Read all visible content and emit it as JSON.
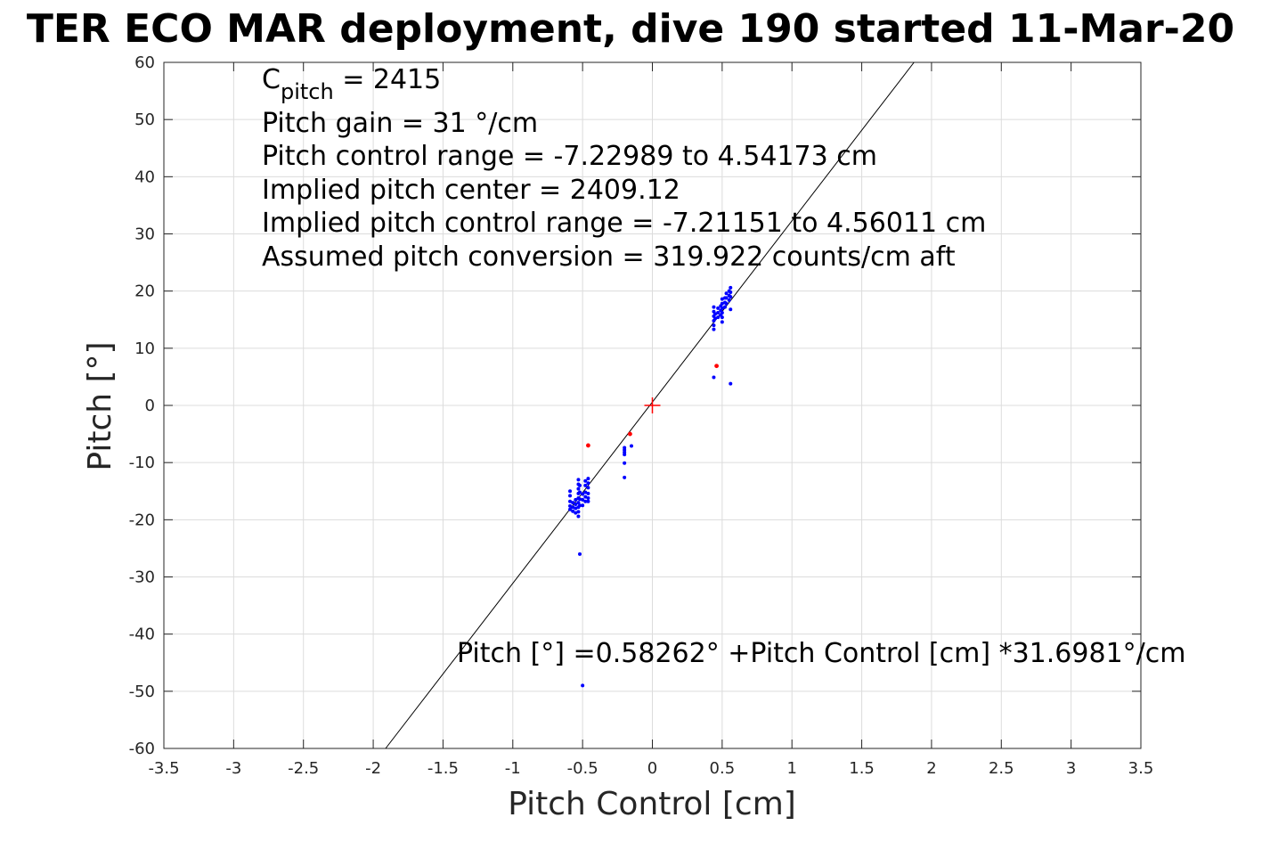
{
  "chart_data": {
    "type": "scatter",
    "title": "TER ECO MAR deployment, dive 190 started 11-Mar-20",
    "xlabel": "Pitch Control [cm]",
    "ylabel": "Pitch [°]",
    "xlim": [
      -3.5,
      3.5
    ],
    "ylim": [
      -60,
      60
    ],
    "xticks": [
      -3.5,
      -3,
      -2.5,
      -2,
      -1.5,
      -1,
      -0.5,
      0,
      0.5,
      1,
      1.5,
      2,
      2.5,
      3,
      3.5
    ],
    "yticks": [
      -60,
      -50,
      -40,
      -30,
      -20,
      -10,
      0,
      10,
      20,
      30,
      40,
      50,
      60
    ],
    "xtick_labels": [
      "-3.5",
      "-3",
      "-2.5",
      "-2",
      "-1.5",
      "-1",
      "-0.5",
      "0",
      "0.5",
      "1",
      "1.5",
      "2",
      "2.5",
      "3",
      "3.5"
    ],
    "ytick_labels": [
      "-60",
      "-50",
      "-40",
      "-30",
      "-20",
      "-10",
      "0",
      "10",
      "20",
      "30",
      "40",
      "50",
      "60"
    ],
    "grid": true,
    "fit_line": {
      "intercept": 0.58262,
      "slope": 31.6981,
      "color": "#000000"
    },
    "center_marker": {
      "x": 0,
      "y": 0,
      "color": "#ff0000"
    },
    "series": [
      {
        "color": "#0000ff",
        "points": [
          [
            -0.59,
            -15.0
          ],
          [
            -0.59,
            -15.8
          ],
          [
            -0.59,
            -16.8
          ],
          [
            -0.59,
            -17.6
          ],
          [
            -0.59,
            -18.2
          ],
          [
            -0.57,
            -17.0
          ],
          [
            -0.57,
            -17.8
          ],
          [
            -0.57,
            -18.5
          ],
          [
            -0.55,
            -16.5
          ],
          [
            -0.55,
            -17.3
          ],
          [
            -0.55,
            -18.0
          ],
          [
            -0.55,
            -18.8
          ],
          [
            -0.53,
            -13.0
          ],
          [
            -0.53,
            -13.8
          ],
          [
            -0.53,
            -14.6
          ],
          [
            -0.53,
            -15.4
          ],
          [
            -0.53,
            -16.2
          ],
          [
            -0.53,
            -17.0
          ],
          [
            -0.53,
            -17.8
          ],
          [
            -0.53,
            -18.6
          ],
          [
            -0.53,
            -19.4
          ],
          [
            -0.52,
            -14.0
          ],
          [
            -0.52,
            -15.2
          ],
          [
            -0.52,
            -16.4
          ],
          [
            -0.52,
            -17.5
          ],
          [
            -0.52,
            -26.0
          ],
          [
            -0.5,
            -15.5
          ],
          [
            -0.5,
            -16.5
          ],
          [
            -0.5,
            -17.5
          ],
          [
            -0.5,
            -49.0
          ],
          [
            -0.48,
            -13.2
          ],
          [
            -0.48,
            -14.0
          ],
          [
            -0.48,
            -15.2
          ],
          [
            -0.48,
            -16.0
          ],
          [
            -0.48,
            -16.8
          ],
          [
            -0.46,
            -12.8
          ],
          [
            -0.46,
            -13.6
          ],
          [
            -0.46,
            -14.4
          ],
          [
            -0.46,
            -15.4
          ],
          [
            -0.46,
            -16.2
          ],
          [
            -0.46,
            -16.8
          ],
          [
            -0.2,
            -7.4
          ],
          [
            -0.2,
            -7.8
          ],
          [
            -0.2,
            -8.2
          ],
          [
            -0.2,
            -8.6
          ],
          [
            -0.2,
            -10.1
          ],
          [
            -0.2,
            -12.6
          ],
          [
            -0.15,
            -7.1
          ],
          [
            0.44,
            17.2
          ],
          [
            0.44,
            16.4
          ],
          [
            0.44,
            15.6
          ],
          [
            0.44,
            14.8
          ],
          [
            0.44,
            14.0
          ],
          [
            0.44,
            13.3
          ],
          [
            0.45,
            16.0
          ],
          [
            0.45,
            15.2
          ],
          [
            0.44,
            4.9
          ],
          [
            0.47,
            17.0
          ],
          [
            0.47,
            16.2
          ],
          [
            0.47,
            15.4
          ],
          [
            0.49,
            17.4
          ],
          [
            0.49,
            16.6
          ],
          [
            0.49,
            15.8
          ],
          [
            0.5,
            18.6
          ],
          [
            0.5,
            17.8
          ],
          [
            0.5,
            17.0
          ],
          [
            0.5,
            16.2
          ],
          [
            0.5,
            15.4
          ],
          [
            0.5,
            14.6
          ],
          [
            0.52,
            18.8
          ],
          [
            0.52,
            18.0
          ],
          [
            0.52,
            17.2
          ],
          [
            0.53,
            19.6
          ],
          [
            0.53,
            18.8
          ],
          [
            0.53,
            17.8
          ],
          [
            0.55,
            20.0
          ],
          [
            0.55,
            19.2
          ],
          [
            0.55,
            18.4
          ],
          [
            0.56,
            20.6
          ],
          [
            0.56,
            19.8
          ],
          [
            0.56,
            19.0
          ],
          [
            0.56,
            16.8
          ],
          [
            0.56,
            3.8
          ]
        ]
      },
      {
        "color": "#ff0000",
        "points": [
          [
            -0.46,
            -7.0
          ],
          [
            -0.16,
            -5.0
          ],
          [
            0.46,
            6.9
          ]
        ]
      }
    ],
    "annotations": {
      "c_pitch_symbol": "C",
      "c_pitch_subscript": "pitch",
      "c_pitch_value": " = 2415",
      "lines": [
        "Pitch gain = 31 °/cm",
        "Pitch control range = -7.22989 to 4.54173 cm",
        "Implied pitch center = 2409.12",
        "Implied pitch control range = -7.21151 to 4.56011 cm",
        "Assumed pitch conversion = 319.922 counts/cm aft"
      ],
      "equation": "Pitch [°] =0.58262° +Pitch Control [cm] *31.6981°/cm"
    }
  }
}
